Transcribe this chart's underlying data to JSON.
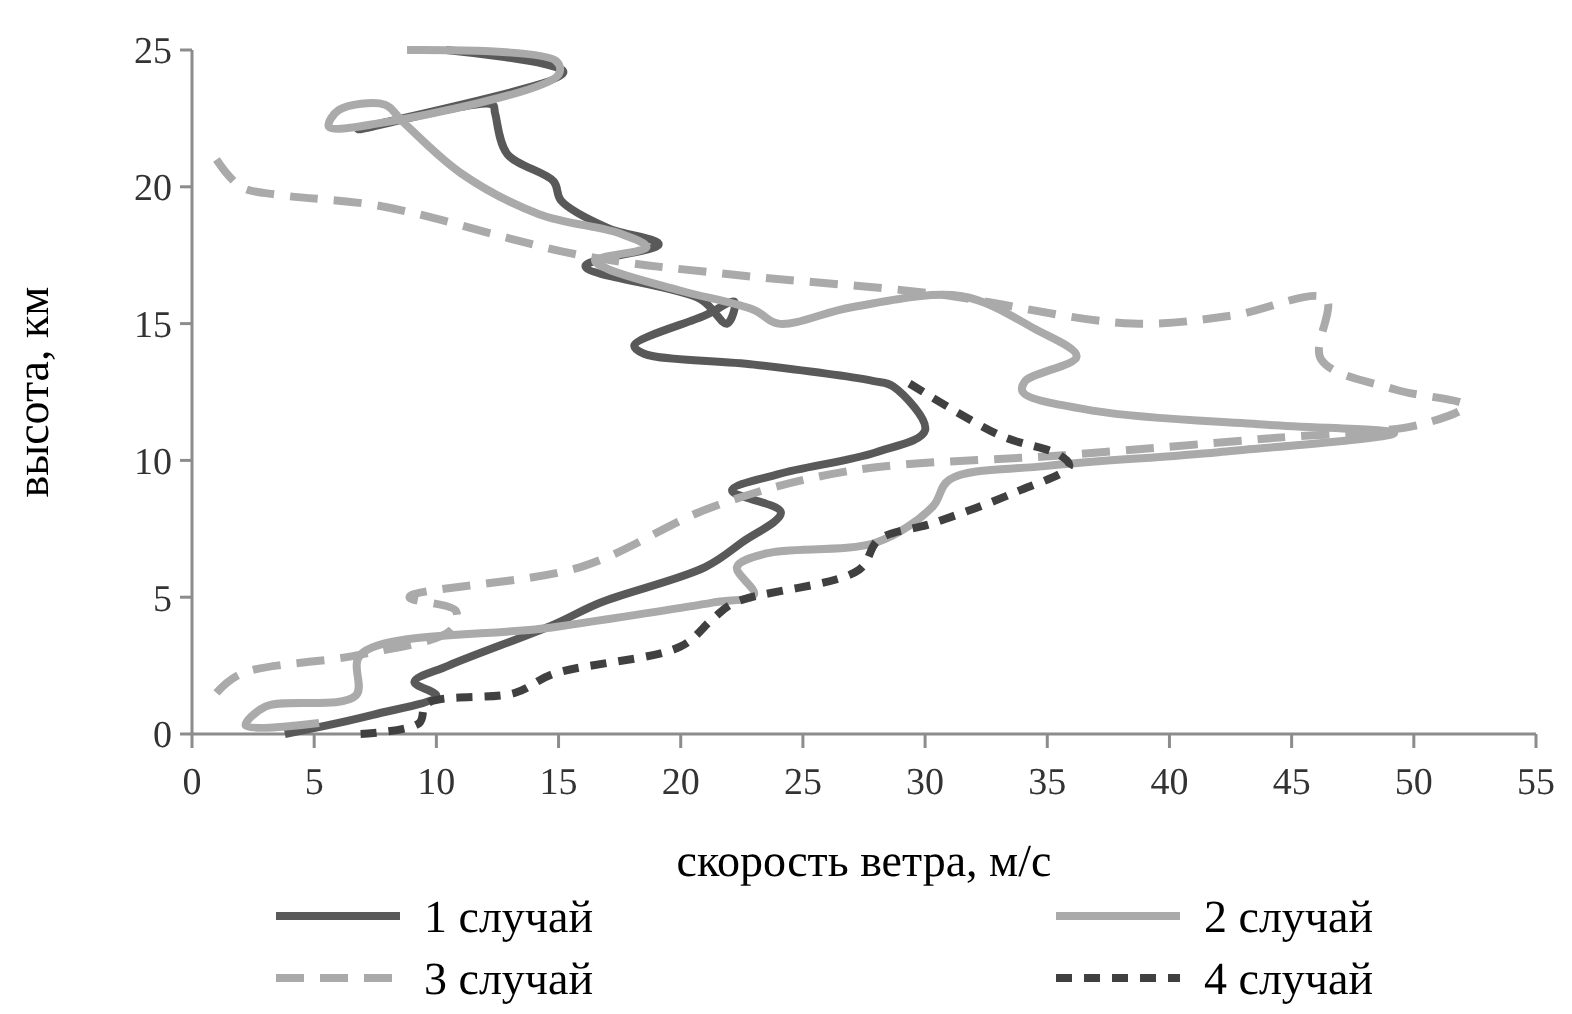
{
  "chart_data": {
    "type": "line",
    "xlabel": "скорость ветра, м/с",
    "ylabel": "высота, км",
    "xlim": [
      0,
      55
    ],
    "xticks": [
      0,
      5,
      10,
      15,
      20,
      25,
      30,
      35,
      40,
      45,
      50,
      55
    ],
    "ylim": [
      0,
      25
    ],
    "yticks": [
      0,
      5,
      10,
      15,
      20,
      25
    ],
    "grid": false,
    "legend": "bottom",
    "series": [
      {
        "name": "1 случай",
        "color": "#595959",
        "line_style": "solid",
        "x": [
          3.8,
          7.4,
          10,
          9.1,
          10.5,
          14.8,
          16.7,
          21,
          22.5,
          24.1,
          22.1,
          24,
          28,
          30,
          28.7,
          27.9,
          23,
          18.5,
          18.1,
          21,
          22.2,
          21.9,
          20.8,
          16.1,
          19.1,
          17,
          15.1,
          14.8,
          12.9,
          12.4,
          12.3,
          6.8,
          15.2,
          10.4
        ],
        "values": [
          0,
          0.7,
          1.4,
          1.9,
          2.5,
          4,
          4.8,
          6.1,
          7,
          8.1,
          8.9,
          9.5,
          10.3,
          11.1,
          12.7,
          12.9,
          13.5,
          13.9,
          14.2,
          15.3,
          15.8,
          15,
          15.9,
          17.1,
          17.9,
          18.5,
          19.5,
          20.2,
          21.2,
          22.7,
          23,
          22.1,
          24.2,
          25
        ]
      },
      {
        "name": "2 случай",
        "color": "#aaaaaa",
        "line_style": "solid",
        "x": [
          5.2,
          2.2,
          3,
          6.7,
          6.9,
          14.8,
          21.3,
          23,
          22.3,
          23.5,
          28,
          30.3,
          31,
          35,
          42,
          49.2,
          44,
          37,
          34,
          34.1,
          36.2,
          34.5,
          31.5,
          27,
          24,
          23,
          20,
          17,
          16.5,
          18.6,
          17.5,
          14.2,
          11,
          8.6,
          7.9,
          6,
          5.6,
          7.5,
          15,
          14.9,
          8.8
        ],
        "values": [
          0.4,
          0.3,
          1,
          1.4,
          2.9,
          3.9,
          4.8,
          5.1,
          6.1,
          6.6,
          7,
          8.3,
          9.3,
          9.8,
          10.3,
          11,
          11.3,
          11.8,
          12.5,
          12.9,
          13.8,
          14.8,
          16,
          15.6,
          15,
          15.5,
          16.2,
          17,
          17.3,
          17.8,
          18.3,
          19,
          20.5,
          22.4,
          23,
          22.8,
          22.2,
          22.3,
          24.1,
          24.6,
          25
        ]
      },
      {
        "name": "3 случай",
        "color": "#aaaaaa",
        "line_style": "dashed",
        "x": [
          1,
          2,
          6.9,
          10.6,
          10.8,
          8.9,
          15.9,
          21.3,
          26.8,
          35.8,
          44,
          50.2,
          52.1,
          49.2,
          46.2,
          46.4,
          42.6,
          38.5,
          30.3,
          22,
          15.9,
          7.7,
          3.6,
          2,
          1
        ],
        "values": [
          1.5,
          2.2,
          2.9,
          3.8,
          4.5,
          5,
          6.1,
          8.3,
          9.6,
          10.2,
          10.8,
          11.3,
          12,
          12.6,
          13.7,
          15.9,
          15.3,
          15,
          16.1,
          16.8,
          17.5,
          19.3,
          19.7,
          20,
          21
        ]
      },
      {
        "name": "4 случай",
        "color": "#404040",
        "line_style": "dashed",
        "x": [
          6.9,
          9.3,
          9.6,
          13.2,
          14.8,
          20,
          21.3,
          22.2,
          27.3,
          28.1,
          30.3,
          33.6,
          35.9,
          35.5,
          33.1,
          29.2
        ],
        "values": [
          0,
          0.4,
          1.1,
          1.5,
          2.2,
          3.2,
          4.2,
          4.8,
          6,
          7.1,
          7.7,
          8.8,
          9.8,
          10.2,
          10.9,
          12.9
        ]
      }
    ]
  }
}
